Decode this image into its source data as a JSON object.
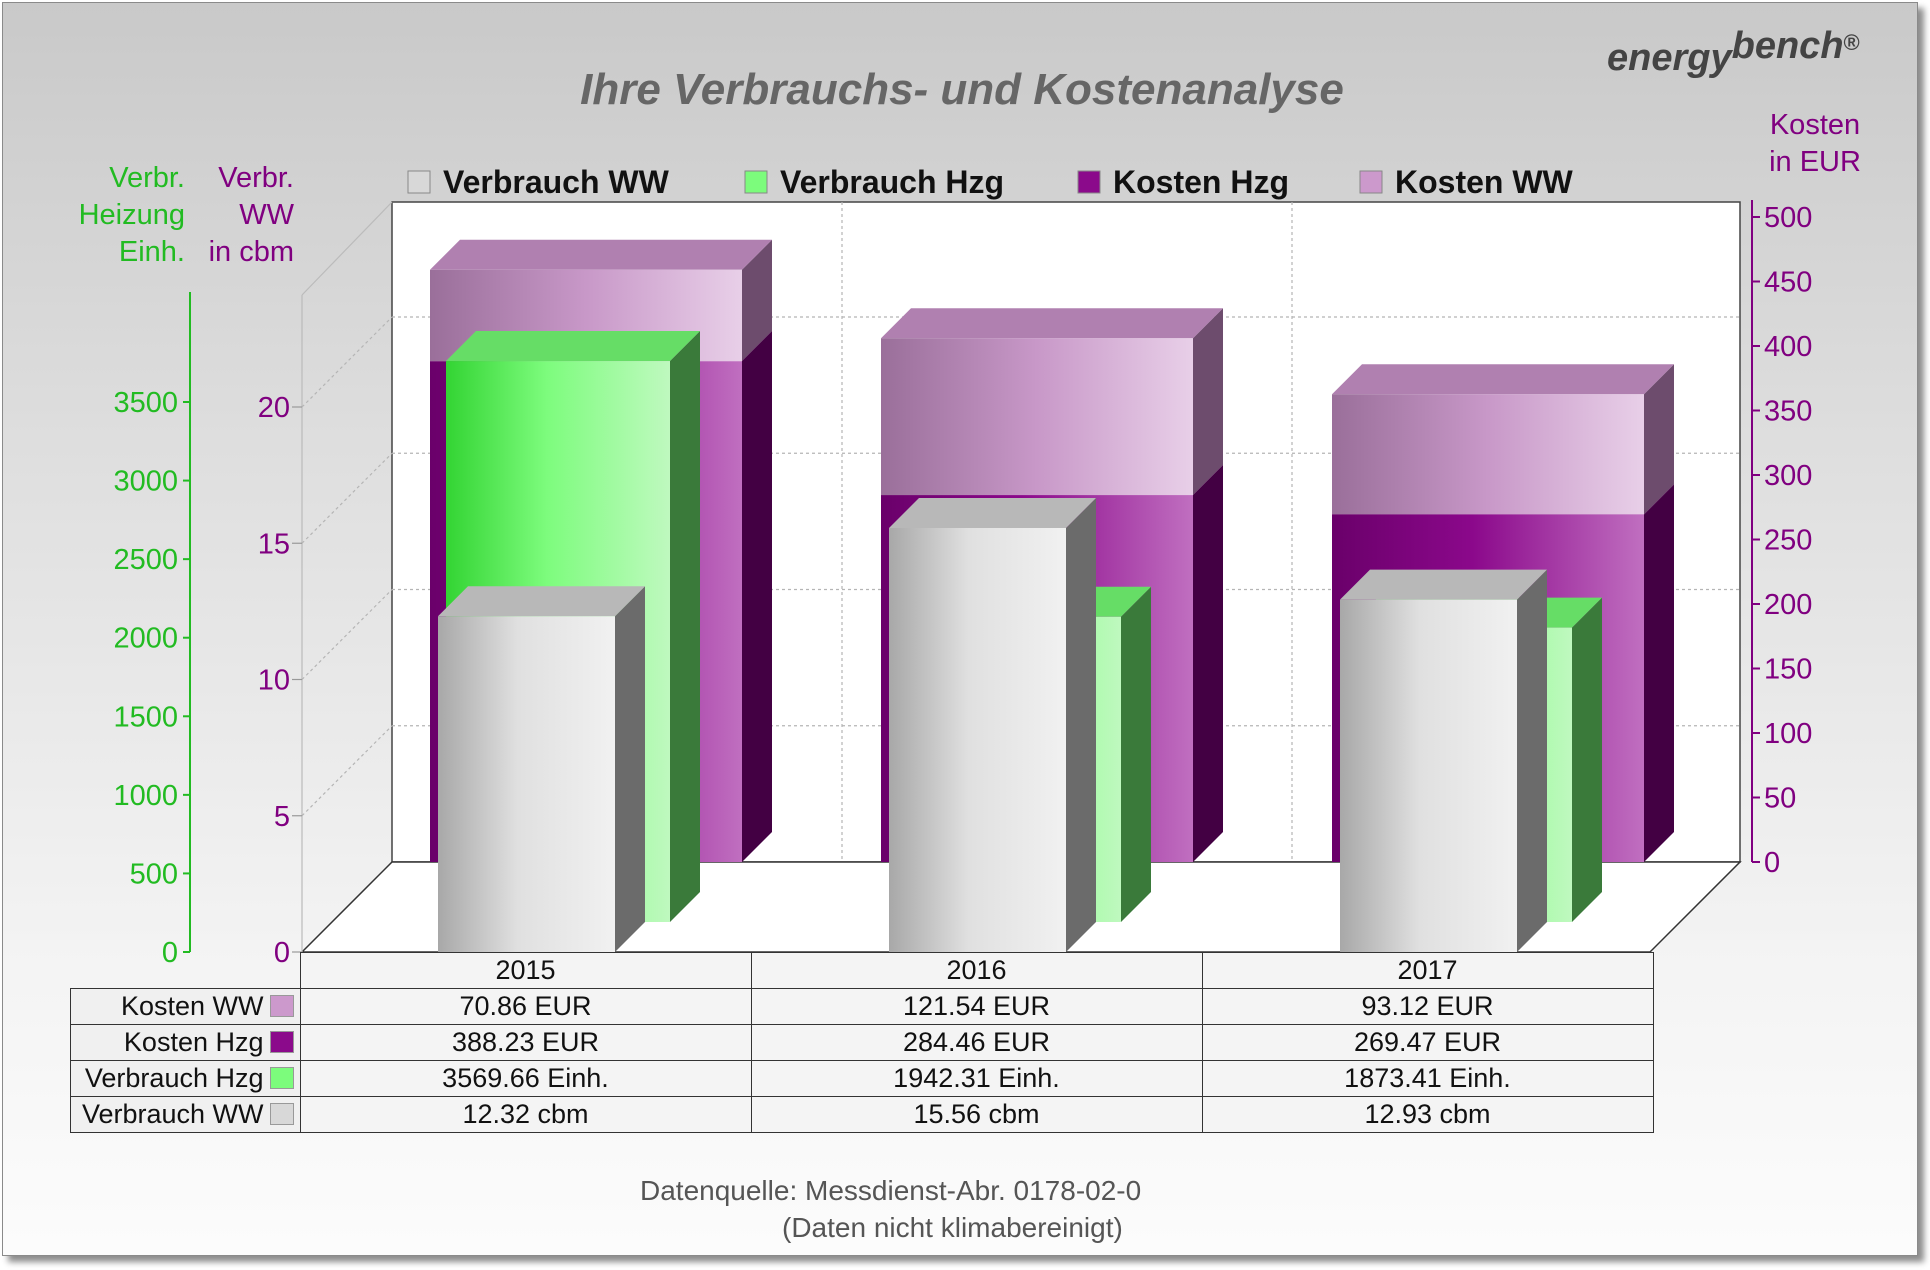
{
  "title": "Ihre Verbrauchs- und Kostenanalyse",
  "brand": {
    "part1": "energy",
    "part2": "bench",
    "mark": "®"
  },
  "axes": {
    "heizung_label": [
      "Verbr.",
      "Heizung",
      "Einh."
    ],
    "ww_label": [
      "Verbr.",
      "WW",
      "in cbm"
    ],
    "kosten_label": [
      "Kosten",
      "in EUR"
    ],
    "heizung_ticks": [
      "0",
      "500",
      "1000",
      "1500",
      "2000",
      "2500",
      "3000",
      "3500"
    ],
    "ww_ticks": [
      "0",
      "5",
      "10",
      "15",
      "20"
    ],
    "kosten_ticks": [
      "0",
      "50",
      "100",
      "150",
      "200",
      "250",
      "300",
      "350",
      "400",
      "450",
      "500"
    ]
  },
  "legend": [
    {
      "label": "Verbrauch WW",
      "color": "#d8d8d8"
    },
    {
      "label": "Verbrauch Hzg",
      "color": "#7cfc7c"
    },
    {
      "label": "Kosten Hzg",
      "color": "#8b0a8b"
    },
    {
      "label": "Kosten WW",
      "color": "#cc99cc"
    }
  ],
  "colors": {
    "heizung_axis": "#22bb22",
    "ww_axis": "#800080",
    "kosten_axis": "#800080"
  },
  "chart_data": {
    "type": "bar",
    "categories": [
      "2015",
      "2016",
      "2017"
    ],
    "series": [
      {
        "name": "Verbrauch WW",
        "values": [
          12.32,
          15.56,
          12.93
        ],
        "unit": "cbm",
        "axis": "WW",
        "ylim": [
          0,
          20
        ]
      },
      {
        "name": "Verbrauch Hzg",
        "values": [
          3569.66,
          1942.31,
          1873.41
        ],
        "unit": "Einh.",
        "axis": "Heizung",
        "ylim": [
          0,
          3500
        ]
      },
      {
        "name": "Kosten Hzg",
        "values": [
          388.23,
          284.46,
          269.47
        ],
        "unit": "EUR",
        "axis": "Kosten",
        "stack": "kosten",
        "ylim": [
          0,
          500
        ]
      },
      {
        "name": "Kosten WW",
        "values": [
          70.86,
          121.54,
          93.12
        ],
        "unit": "EUR",
        "axis": "Kosten",
        "stack": "kosten",
        "ylim": [
          0,
          500
        ]
      }
    ],
    "title": "Ihre Verbrauchs- und Kostenanalyse",
    "grid": true,
    "legend_position": "top"
  },
  "table": {
    "years": [
      "2015",
      "2016",
      "2017"
    ],
    "rows": [
      {
        "label": "Kosten WW",
        "color": "#cc99cc",
        "cells": [
          "70.86 EUR",
          "121.54 EUR",
          "93.12 EUR"
        ]
      },
      {
        "label": "Kosten Hzg",
        "color": "#8b0a8b",
        "cells": [
          "388.23 EUR",
          "284.46 EUR",
          "269.47 EUR"
        ]
      },
      {
        "label": "Verbrauch Hzg",
        "color": "#7cfc7c",
        "cells": [
          "3569.66 Einh.",
          "1942.31 Einh.",
          "1873.41 Einh."
        ]
      },
      {
        "label": "Verbrauch WW",
        "color": "#d8d8d8",
        "cells": [
          "12.32 cbm",
          "15.56 cbm",
          "12.93 cbm"
        ]
      }
    ]
  },
  "source": {
    "line1": "Datenquelle: Messdienst-Abr.   0178-02-0",
    "line2": "(Daten nicht klimabereinigt)"
  }
}
